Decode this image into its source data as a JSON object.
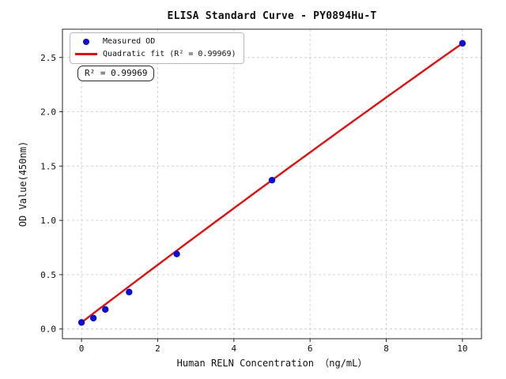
{
  "chart_data": {
    "type": "scatter",
    "title": "ELISA Standard Curve - PY0894Hu-T",
    "xlabel": "Human RELN Concentration （ng/mL）",
    "ylabel": "OD Value(450nm)",
    "x": [
      0,
      0.3125,
      0.625,
      1.25,
      2.5,
      5,
      10
    ],
    "y": [
      0.06,
      0.1,
      0.18,
      0.34,
      0.69,
      1.37,
      2.63
    ],
    "series_name": "Measured OD",
    "fit": {
      "type": "quadratic",
      "label": "Quadratic fit (R² = 0.99969)",
      "a": 0.06,
      "b": 0.267,
      "c": -0.001,
      "r_squared": 0.99969,
      "range": [
        0,
        10
      ]
    },
    "annotation": "R² = 0.99969",
    "xticks": [
      "0",
      "2",
      "4",
      "6",
      "8",
      "10"
    ],
    "xtick_values": [
      0,
      2,
      4,
      6,
      8,
      10
    ],
    "yticks": [
      "0.0",
      "0.5",
      "1.0",
      "1.5",
      "2.0",
      "2.5"
    ],
    "ytick_values": [
      0,
      0.5,
      1.0,
      1.5,
      2.0,
      2.5
    ],
    "xlim": [
      -0.5,
      10.5
    ],
    "ylim": [
      -0.09,
      2.76
    ],
    "grid": true,
    "grid_style": "dashed",
    "legend_position": "upper left",
    "colors": {
      "marker": "#0d0dd8",
      "line": "#e01010",
      "grid": "#cdcdcd",
      "axis": "#262626",
      "text": "#111111"
    }
  },
  "legend": {
    "items": [
      {
        "label": "Measured OD",
        "marker": "dot",
        "color": "#0d0dd8"
      },
      {
        "label": "Quadratic fit (R² = 0.99969)",
        "marker": "line",
        "color": "#e01010"
      }
    ]
  }
}
